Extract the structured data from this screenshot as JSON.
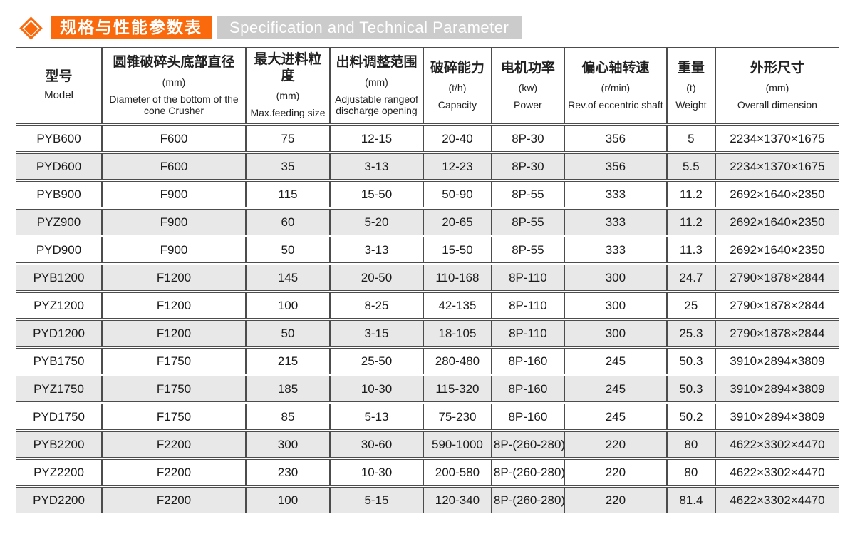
{
  "header": {
    "title_zh": "规格与性能参数表",
    "title_en": "Specification and Technical Parameter",
    "accent_color": "#fa6a0c",
    "title_en_bg": "#cbcbcb",
    "bullet_icon": "diamond-icon"
  },
  "table": {
    "border_color": "#4c4c4c",
    "row_alt_color": "#e8e8e8",
    "columns": [
      {
        "zh": "型号",
        "unit": "",
        "en": "Model"
      },
      {
        "zh": "圆锥破碎头底部直径",
        "unit": "(mm)",
        "en": "Diameter of the bottom of the cone Crusher"
      },
      {
        "zh": "最大进料粒度",
        "unit": "(mm)",
        "en": "Max.feeding size"
      },
      {
        "zh": "出料调整范围",
        "unit": "(mm)",
        "en": "Adjustable rangeof discharge opening"
      },
      {
        "zh": "破碎能力",
        "unit": "(t/h)",
        "en": "Capacity"
      },
      {
        "zh": "电机功率",
        "unit": "(kw)",
        "en": "Power"
      },
      {
        "zh": "偏心轴转速",
        "unit": "(r/min)",
        "en": "Rev.of eccentric shaft"
      },
      {
        "zh": "重量",
        "unit": "(t)",
        "en": "Weight"
      },
      {
        "zh": "外形尺寸",
        "unit": "(mm)",
        "en": "Overall dimension"
      }
    ],
    "rows": [
      [
        "PYB600",
        "F600",
        "75",
        "12-15",
        "20-40",
        "8P-30",
        "356",
        "5",
        "2234×1370×1675"
      ],
      [
        "PYD600",
        "F600",
        "35",
        "3-13",
        "12-23",
        "8P-30",
        "356",
        "5.5",
        "2234×1370×1675"
      ],
      [
        "PYB900",
        "F900",
        "115",
        "15-50",
        "50-90",
        "8P-55",
        "333",
        "11.2",
        "2692×1640×2350"
      ],
      [
        "PYZ900",
        "F900",
        "60",
        "5-20",
        "20-65",
        "8P-55",
        "333",
        "11.2",
        "2692×1640×2350"
      ],
      [
        "PYD900",
        "F900",
        "50",
        "3-13",
        "15-50",
        "8P-55",
        "333",
        "11.3",
        "2692×1640×2350"
      ],
      [
        "PYB1200",
        "F1200",
        "145",
        "20-50",
        "110-168",
        "8P-110",
        "300",
        "24.7",
        "2790×1878×2844"
      ],
      [
        "PYZ1200",
        "F1200",
        "100",
        "8-25",
        "42-135",
        "8P-110",
        "300",
        "25",
        "2790×1878×2844"
      ],
      [
        "PYD1200",
        "F1200",
        "50",
        "3-15",
        "18-105",
        "8P-110",
        "300",
        "25.3",
        "2790×1878×2844"
      ],
      [
        "PYB1750",
        "F1750",
        "215",
        "25-50",
        "280-480",
        "8P-160",
        "245",
        "50.3",
        "3910×2894×3809"
      ],
      [
        "PYZ1750",
        "F1750",
        "185",
        "10-30",
        "115-320",
        "8P-160",
        "245",
        "50.3",
        "3910×2894×3809"
      ],
      [
        "PYD1750",
        "F1750",
        "85",
        "5-13",
        "75-230",
        "8P-160",
        "245",
        "50.2",
        "3910×2894×3809"
      ],
      [
        "PYB2200",
        "F2200",
        "300",
        "30-60",
        "590-1000",
        "8P-(260-280)",
        "220",
        "80",
        "4622×3302×4470"
      ],
      [
        "PYZ2200",
        "F2200",
        "230",
        "10-30",
        "200-580",
        "8P-(260-280)",
        "220",
        "80",
        "4622×3302×4470"
      ],
      [
        "PYD2200",
        "F2200",
        "100",
        "5-15",
        "120-340",
        "8P-(260-280)",
        "220",
        "81.4",
        "4622×3302×4470"
      ]
    ]
  }
}
